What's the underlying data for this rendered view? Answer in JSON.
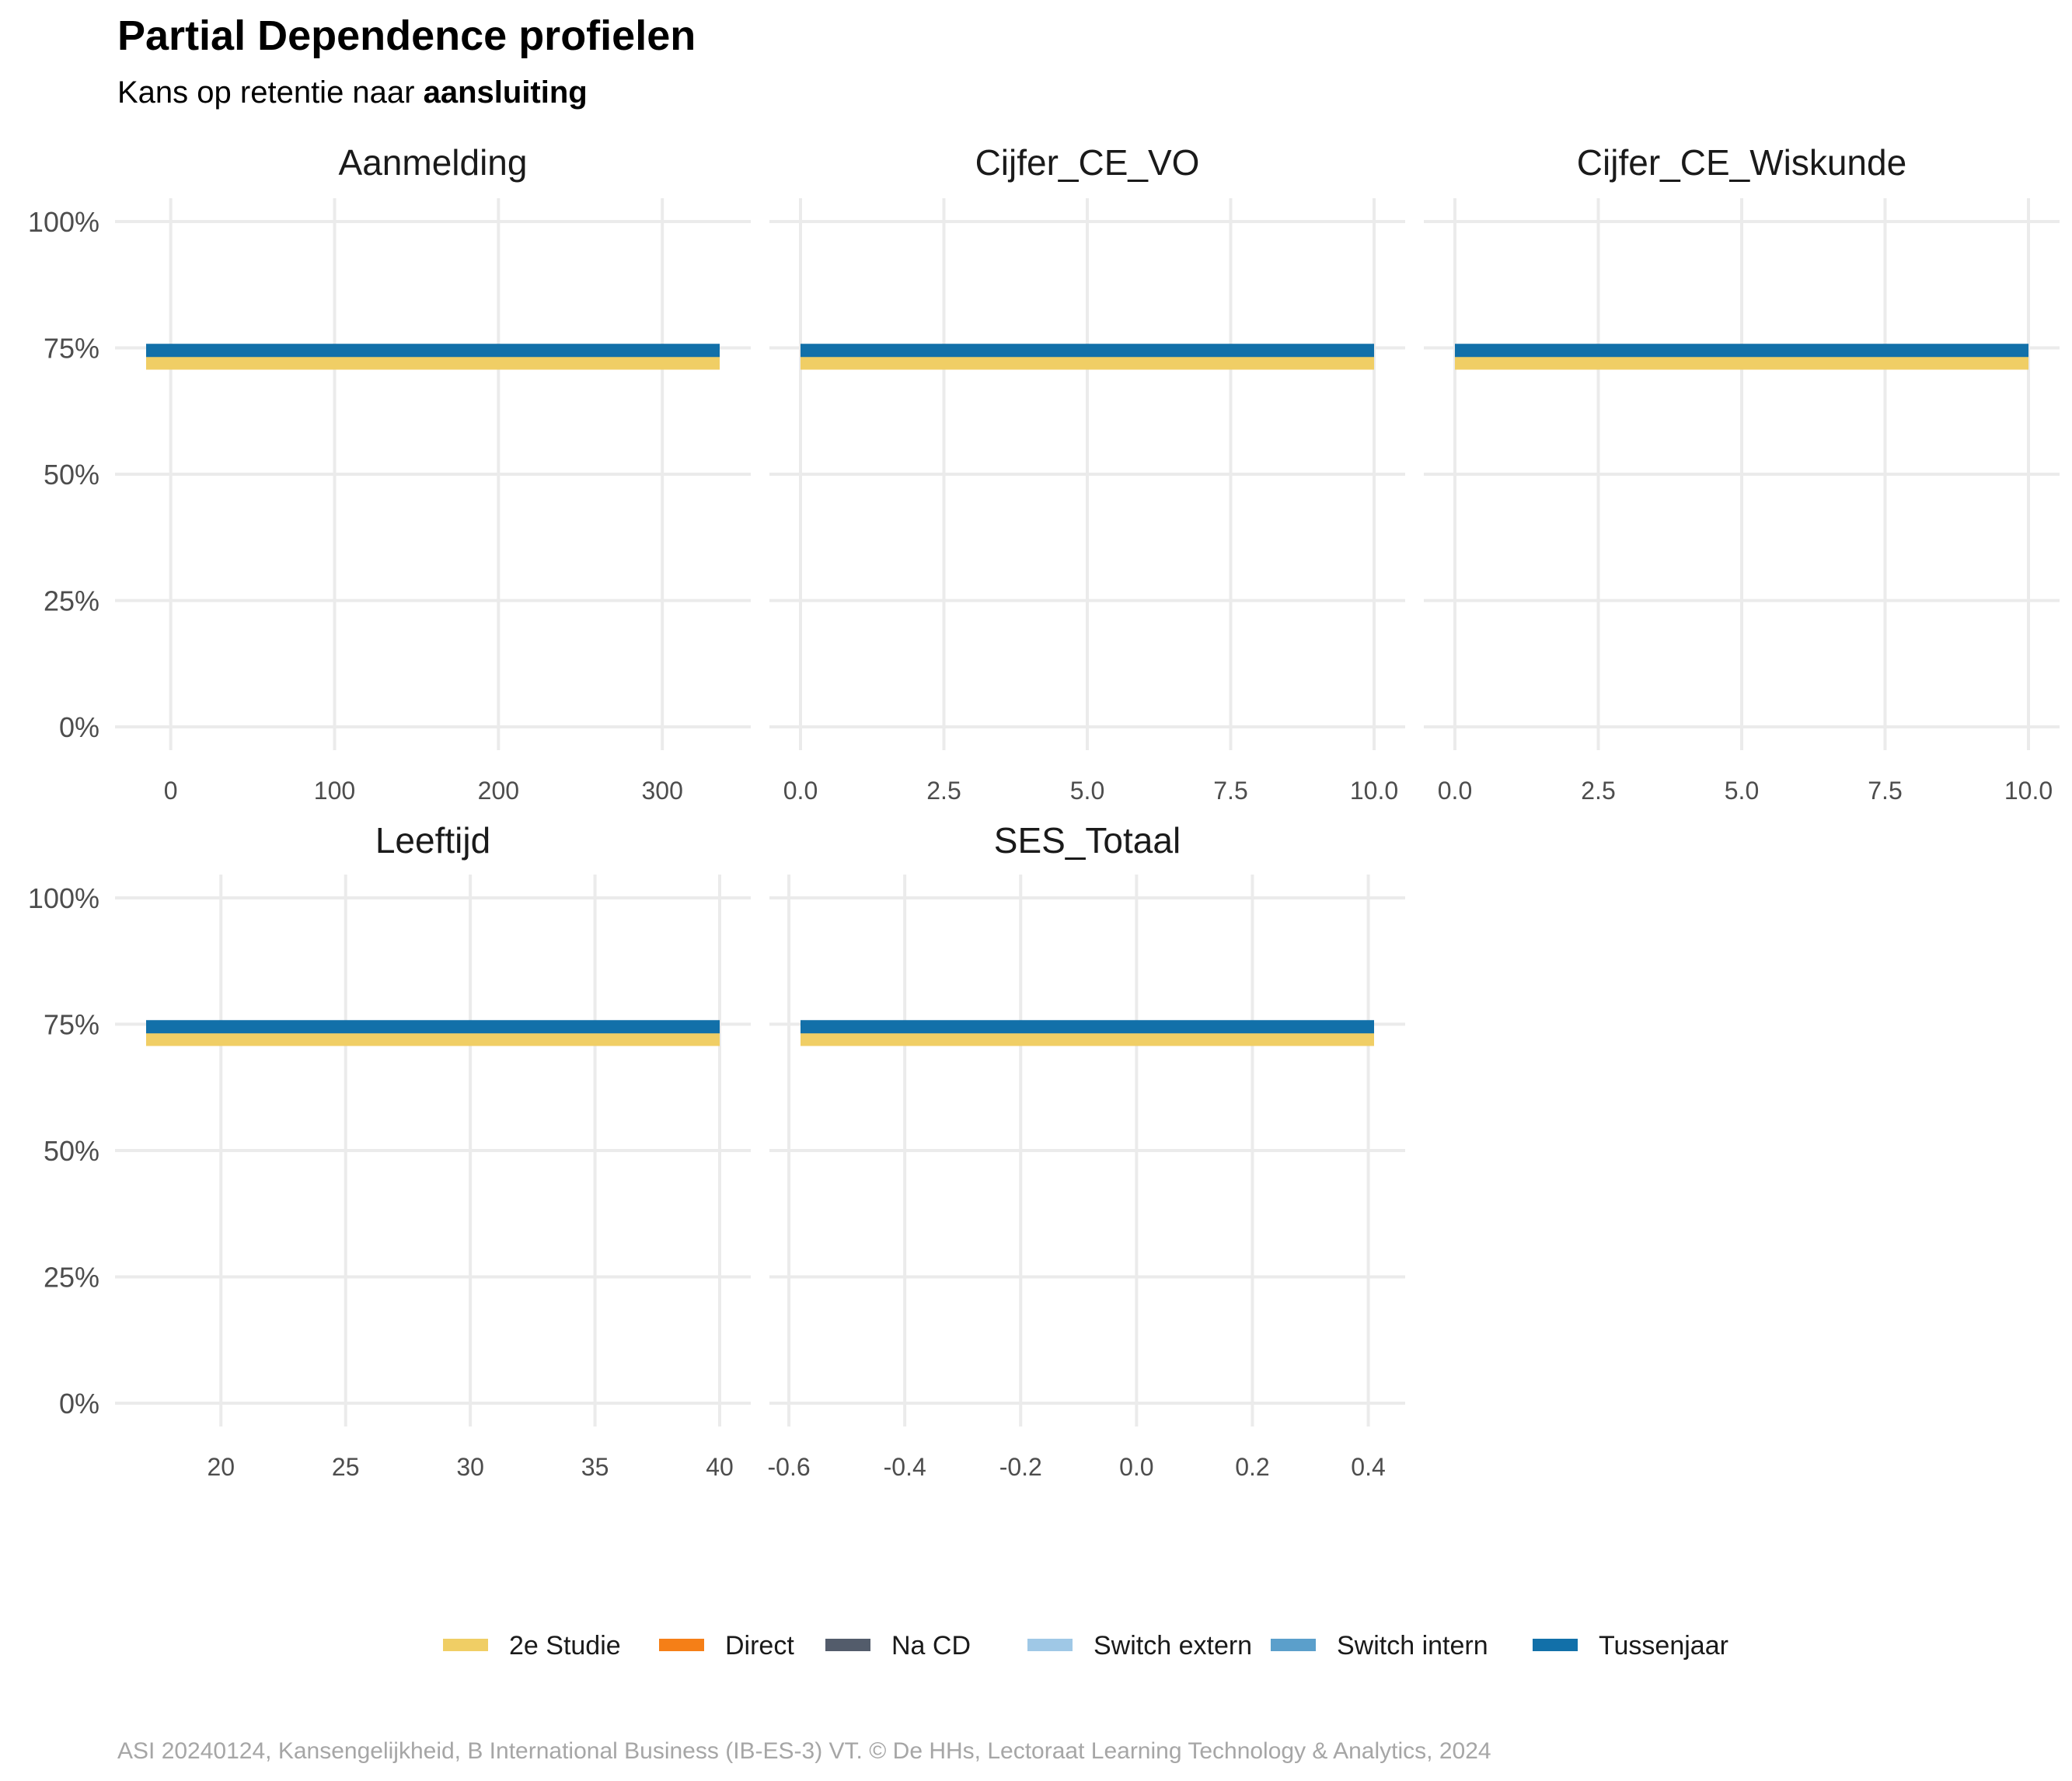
{
  "title": "Partial Dependence profielen",
  "subtitle_prefix": "Kans op retentie naar ",
  "subtitle_emphasis": "aansluiting",
  "caption": "ASI 20240124, Kansengelijkheid, B International Business (IB-ES-3) VT. © De HHs, Lectoraat Learning Technology & Analytics, 2024",
  "legend": [
    {
      "label": "2e Studie",
      "color": "#F0CE65"
    },
    {
      "label": "Direct",
      "color": "#F57F17"
    },
    {
      "label": "Na CD",
      "color": "#535C6B"
    },
    {
      "label": "Switch extern",
      "color": "#9FC8E6"
    },
    {
      "label": "Switch intern",
      "color": "#5B9FCB"
    },
    {
      "label": "Tussenjaar",
      "color": "#1270A9"
    }
  ],
  "chart_data": {
    "type": "line",
    "ylim": [
      0,
      1
    ],
    "y_ticks": [
      0,
      0.25,
      0.5,
      0.75,
      1.0
    ],
    "y_tick_labels": [
      "0%",
      "25%",
      "50%",
      "75%",
      "100%"
    ],
    "grid": true,
    "legend_position": "bottom",
    "facets": [
      {
        "name": "Aanmelding",
        "xlim": [
          -15,
          335
        ],
        "x_ticks": [
          0,
          100,
          200,
          300
        ],
        "x_tick_labels": [
          "0",
          "100",
          "200",
          "300"
        ],
        "series": [
          {
            "name": "2e Studie",
            "x": [
              -15,
              335
            ],
            "y": [
              0.72,
              0.72
            ]
          },
          {
            "name": "Tussenjaar",
            "x": [
              -15,
              335
            ],
            "y": [
              0.745,
              0.745
            ]
          }
        ]
      },
      {
        "name": "Cijfer_CE_VO",
        "xlim": [
          0,
          10
        ],
        "x_ticks": [
          0,
          2.5,
          5,
          7.5,
          10
        ],
        "x_tick_labels": [
          "0.0",
          "2.5",
          "5.0",
          "7.5",
          "10.0"
        ],
        "series": [
          {
            "name": "2e Studie",
            "x": [
              0,
              10
            ],
            "y": [
              0.72,
              0.72
            ]
          },
          {
            "name": "Tussenjaar",
            "x": [
              0,
              10
            ],
            "y": [
              0.745,
              0.745
            ]
          }
        ]
      },
      {
        "name": "Cijfer_CE_Wiskunde",
        "xlim": [
          0,
          10
        ],
        "x_ticks": [
          0,
          2.5,
          5,
          7.5,
          10
        ],
        "x_tick_labels": [
          "0.0",
          "2.5",
          "5.0",
          "7.5",
          "10.0"
        ],
        "series": [
          {
            "name": "2e Studie",
            "x": [
              0,
              10
            ],
            "y": [
              0.72,
              0.72
            ]
          },
          {
            "name": "Tussenjaar",
            "x": [
              0,
              10
            ],
            "y": [
              0.745,
              0.745
            ]
          }
        ]
      },
      {
        "name": "Leeftijd",
        "xlim": [
          17,
          40
        ],
        "x_ticks": [
          20,
          25,
          30,
          35,
          40
        ],
        "x_tick_labels": [
          "20",
          "25",
          "30",
          "35",
          "40"
        ],
        "series": [
          {
            "name": "2e Studie",
            "x": [
              17,
              40
            ],
            "y": [
              0.72,
              0.72
            ]
          },
          {
            "name": "Tussenjaar",
            "x": [
              17,
              40
            ],
            "y": [
              0.745,
              0.745
            ]
          }
        ]
      },
      {
        "name": "SES_Totaal",
        "xlim": [
          -0.58,
          0.41
        ],
        "x_ticks": [
          -0.6,
          -0.4,
          -0.2,
          0,
          0.2,
          0.4
        ],
        "x_tick_labels": [
          "-0.6",
          "-0.4",
          "-0.2",
          "0.0",
          "0.2",
          "0.4"
        ],
        "series": [
          {
            "name": "2e Studie",
            "x": [
              -0.58,
              0.41
            ],
            "y": [
              0.72,
              0.72
            ]
          },
          {
            "name": "Tussenjaar",
            "x": [
              -0.58,
              0.41
            ],
            "y": [
              0.745,
              0.745
            ]
          }
        ]
      }
    ]
  }
}
